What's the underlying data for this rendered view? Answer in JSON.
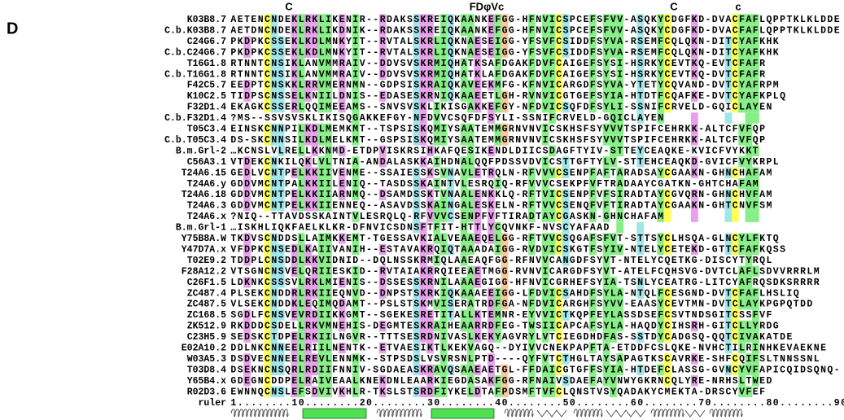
{
  "panel_label": "D",
  "motif_labels": [
    "C",
    "FDφVc",
    "C",
    "c"
  ],
  "alignment": [
    {
      "name": "K03B8.7",
      "sequence": "AETENCNDEKLRKLIKENIR--RDAKSSKREIQKAANKEFGG-HFNVICSPCEFSFVV-ASQKYCDGFKD-DVACFAFLQPPTKLKLDDE"
    },
    {
      "name": "C.b.K03B8.7",
      "sequence": "AETDNCNDEKLRKLIKDNIK--RDAKSSKREIQKAANKEFGG-HFNVICSPCEFSFVV-ASQKYCDGFKD-DVACFAFLQPPTKLKLDDE"
    },
    {
      "name": "C24G6.7",
      "sequence": "PKDPKCSSEKLKDLMNKYIT--RVTALSKRLIQKNAESEIGG-YFSVFCSIDDFSYVA-RSEMFCQLQKN-DITCYAFKHK"
    },
    {
      "name": "C.b.C24G6.7",
      "sequence": "PKDPKCSSEKLKDLMNKYIT--RVTALSKRLIQKNAESEIGG-YFSVFCSIDDFSYVA-RSEMFCQLQKN-DITCYAFKHK"
    },
    {
      "name": "T16G1.8",
      "sequence": "RTNNTCNSIKLANVMMRAIV--DDVSVSKRMIQHATKSAFDGAKFDVFCAIGEFSYSI-HSRKYCEVTKQ-EVTCFAFR"
    },
    {
      "name": "C.b.T16G1.8",
      "sequence": "RTNNTCNSIKLANVMMRAIV--DDVSVSKRMIQHATKLAFDGAKFDVFCAIGEFSYSI-HSRKYCEVTKQ-DVTCFAFR"
    },
    {
      "name": "F42C5.7",
      "sequence": "EEDPTCNSKKLRRVMERNMN--GDPSISKRAIQKAVEEKMFG-KFNVICARGDFSYVA-YTETYCQVAND-DVTCYAFRPM"
    },
    {
      "name": "K10C2.5",
      "sequence": "TIDPSCNSSELKNIILDNIS--EDASESKRNIQKAAEETLGH-RVNVICGTGEFSYIA-HTDTFCQAFKE-DVTCYAFKPLQ"
    },
    {
      "name": "F32D1.4",
      "sequence": "EKAGKCSSERLQQIMEEAMS--SNVSVSKLIKISGAKKEFGY-NFDVICSQFDFSYLI-SSNIFCRVELD-GQICLAYEN"
    },
    {
      "name": "C.b.F32D1.4",
      "sequence": "                 ?MS--SSVSVSKLIKISQGAKKEFGY-NFDVVCSQFDFSYLI-SSNIFCRVELD-GQICLAYEN"
    },
    {
      "name": "T05C3.4",
      "sequence": "EINSKCNNPILKDLMEMKMT--TSPSISKQMIYSAATEMMGRNVNVICSKHSFSYVVVTSPIFCEHRKK-ALTCFVFQP"
    },
    {
      "name": "C.b.T05C3.4",
      "sequence": "DS-SKCNNSILKDLMELKMT--GSPSISKQMIYSAATEMMGRNVNVICSKHSFSYVVVTSPIFCEHRKK-ALTCFVFQP"
    },
    {
      "name": "B.m.Grl-2",
      "sequence": "    …KCNSLVLRELLKKNMD-ETDPVISKRSIHKAFQESIKENDLDIICSDAGFTYIV-STTEYCEAQKE-KVICFVYKKT"
    },
    {
      "name": "C56A3.1",
      "sequence": "VTDEKCNKILQKLVLTNIA-ANDALASKKAIHDNALQQFPDSSVDVICSTTGFTYLV-STTEHCEAQKD-GVICFVYKRPL"
    },
    {
      "name": "T24A6.15",
      "sequence": "GEDLVCNTPELKKIIVENME--SSAIESSKSVNAVLETRQLN-RFVVVCSENPFAFTARADSAYCGAAKN-GHNCHAFAM"
    },
    {
      "name": "T24A6.y",
      "sequence": "GDDVMCNTPALKKIILENIQ--TASDSSKAINTVLESRQIQ-RFVVVCSEKPFVFTRADAAYCGATKN-GHTCHAFAM"
    },
    {
      "name": "T24A6.18",
      "sequence": "GDDVMCNTPELKKIIARNMQ--DSAMDSSKTVNAALENKKLQ-RFTVICSENPFVFSIRADTAYCGVQRN-GHNCHVFAM"
    },
    {
      "name": "T24A6.3",
      "sequence": "GDDVMCNTPELKKIIENNEQ--ASAVDSSKAINGALESKELN-RFTVVCSENQFVFTIRADTAYCGAAKN-GHTCNVFSM"
    },
    {
      "name": "T24A6.x",
      "sequence": "                ?NIQ--TTAVDSSKAINTVLESRQLQ-RFVVVCSENPFVFTIRADTAYCGASKN-GHNCHAFAM"
    },
    {
      "name": "B.m.Grl-1",
      "sequence": "                    …ISKHLIQKFAELKLKR-DFNVICSDNSFTFIT-HTTLYCQVNKF-NVSCYAFAAD"
    },
    {
      "name": "Y75B8A.W",
      "sequence": "TKDVSCNDDSLLAIMKKEMT-TGESSAVKIALVEAAEQELGG-RFTVVCSQGAFSFVT-STTSYCLHSQA-GLNCYLFKTQ"
    },
    {
      "name": "Y47D7A.x",
      "sequence": "VFDPKCNSEDLKAIIVANIH--ESTAVAKRQIQTAAADAIGG-RVDVICSKGTFSYIV-NTELYCETEKD-GTTCFAFKQSS"
    },
    {
      "name": "T02E9.2",
      "sequence": "TDDPLCNSDDLKKVIDNID--DQLNSSKRMIQLAAEAQFGG-RFNVVCANGDFSYVT-NTELYCQETKG-DISCYTYRQL"
    },
    {
      "name": "F28A12.2",
      "sequence": "VTSGNCNSVELQRIIESKID--RVTAIAKRRQIEEAETMGG-RVNVICARGDFSYVT-ATELFCQHSVG-DVTCLAFLSDVVRRRLM"
    },
    {
      "name": "C26F1.5",
      "sequence": "LDKNKCSSSVLRKLMIENIS--DSSESSKRNILAAAEGIGG-HFNVICGRHEFSYIA-TSNLYCEATRG-LITCYAFRQSDKSRRRR"
    },
    {
      "name": "ZC487.4",
      "sequence": "PLSEKCNDDRLRKIIEQNVD--DNPSTSKRKIQKAAAEEIGG-LFDVICSAHDFSYLA-NTQLFCESGND-DVTCFAFLHSLIQ"
    },
    {
      "name": "ZC487.5",
      "sequence": "VLSEKCNDDKLEQIMQDAMT--PSLSTSKMVISERATRDFGA-NFDVICARGHFSYVV-EAASYCEVTMN-DVTCLAYKPGPQTDD"
    },
    {
      "name": "ZC168.5",
      "sequence": "SGDLFCNSVEVRDIIKKGMT--SGEKESRETITALLKTEMNR-EYVVICTKQPFEYLASSDSEFCSVTNDSGITCSSFVF"
    },
    {
      "name": "ZK512.9",
      "sequence": "RKDDDCSDELLRKVMNEHIS-DEGMTESKRAIHEAARRDFEG-TWSIICAPCAFSYLA-HAQDYCIHSRH-GITCLLYRDG"
    },
    {
      "name": "C23H5.9",
      "sequence": "SEDSKCTDPELRKIILNGVR--TTTSESRDNIVASLKEKYAGVRYLVTCIEGDHDFAS-SSTDYCADGSQ-QQTCIVAKATDE"
    },
    {
      "name": "E02A10.2",
      "sequence": "DDLNKCNNEELRIILNENTK--ETVAESIKTLKEKVAGQ--DYIVVCNEKPAPFTA-ETDDFCSLQKE-NVHCTILRINHKEVAEKNE"
    },
    {
      "name": "W03A5.3",
      "sequence": "DSDVECNNEELREVLENNMK--STPSDSLVSVRSNLPTD----QYFVTCTHGLTAYSAPAGTKSCAVRKE-SHFCQIFSLTNNSSNL"
    },
    {
      "name": "T03D8.4",
      "sequence": "DSEKNCNSQRLRDIIFNNIV-SGDAEASKRAVQSAAEAETGL-FFDAICGTGFFSYIA-HTDEFCLASSG-GVNCYVFAPICQIDSQNQ-"
    },
    {
      "name": "Y65B4.x",
      "sequence": "GDEGNCDDPELRAIVEAALKNEKDNLEAARKIEGDASAKFGG-RFNAIVSDAEFAYVNWYGKRNCQLYRE-NRHSLTWED"
    },
    {
      "name": "R02D3.6",
      "sequence": "EWNNQCNSLEFSDVIVKHLR-TKSLSTSRDFIYKELDTAFPDSMFTVFCLQNSTVSYQADAKYCMEKTA-DRSCYVFEF"
    },
    {
      "name": "ruler",
      "sequence": "1........10........20........30........40........50........60........70........80........90"
    }
  ]
}
